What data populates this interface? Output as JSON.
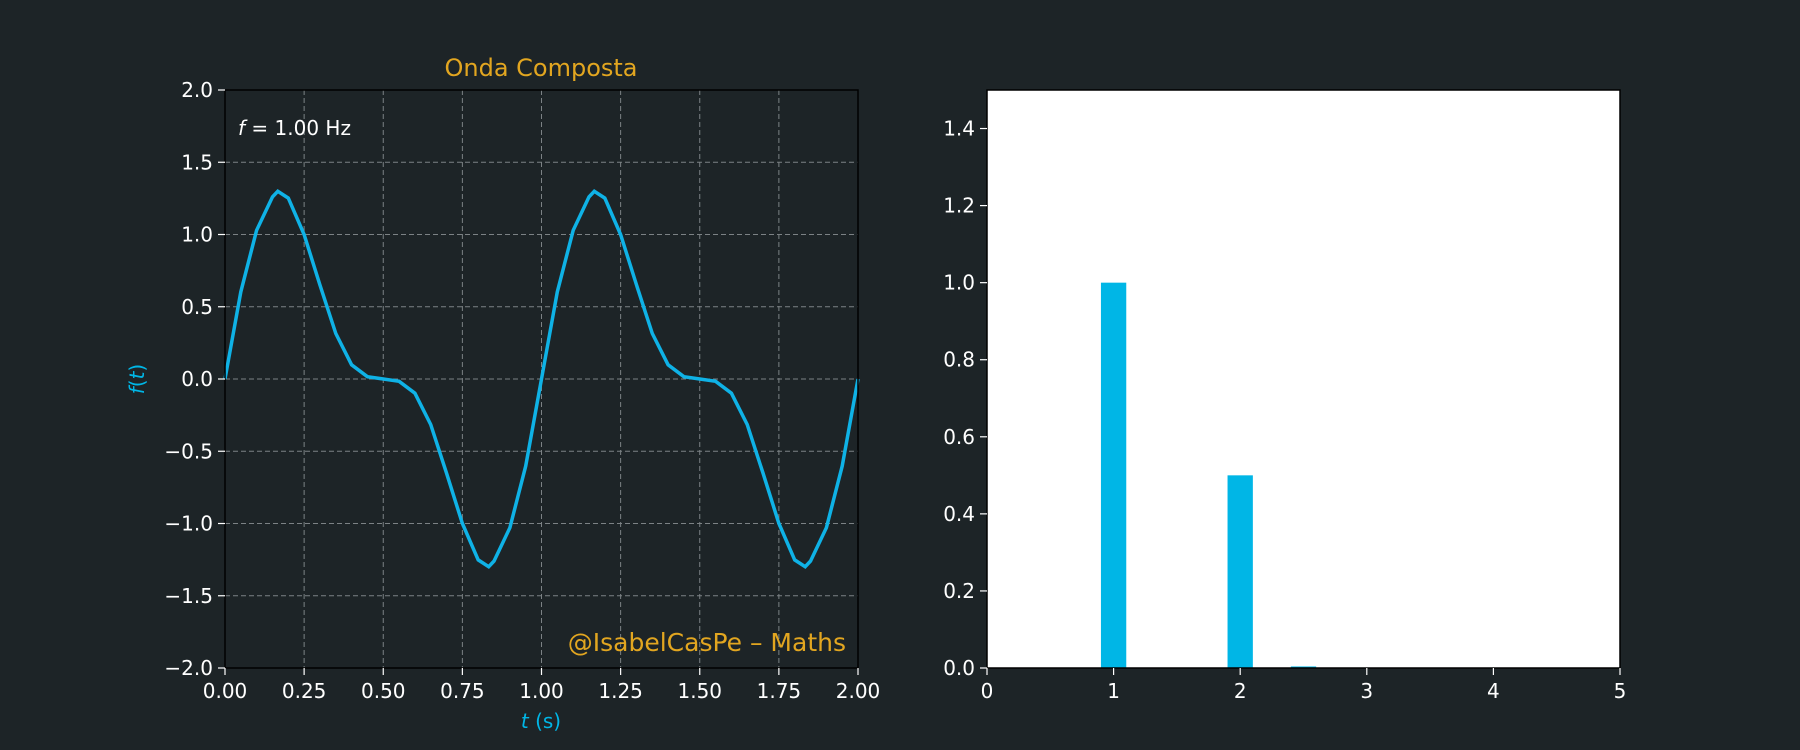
{
  "chart_data": [
    {
      "type": "line",
      "title": "Onda Composta",
      "xlabel_var": "t",
      "xlabel_unit": " (s)",
      "ylabel": "f(t)",
      "ylabel_func": "f",
      "ylabel_arg": "t",
      "xlim": [
        0,
        2
      ],
      "ylim": [
        -2,
        2
      ],
      "xticks": [
        "0.00",
        "0.25",
        "0.50",
        "0.75",
        "1.00",
        "1.25",
        "1.50",
        "1.75",
        "2.00"
      ],
      "yticks": [
        "2.0",
        "1.5",
        "1.0",
        "0.5",
        "0.0",
        "−0.5",
        "−1.0",
        "−1.5",
        "−2.0"
      ],
      "grid": true,
      "annotation_var": "f",
      "annotation_value": " = 1.00 Hz",
      "watermark": "@IsabelCasPe – Maths",
      "series": [
        {
          "x": [
            0,
            0.05,
            0.1,
            0.15,
            0.1667,
            0.2,
            0.25,
            0.3,
            0.35,
            0.4,
            0.45,
            0.5,
            0.55,
            0.6,
            0.65,
            0.7,
            0.75,
            0.8,
            0.8333,
            0.85,
            0.9,
            0.95,
            1.0,
            1.05,
            1.1,
            1.15,
            1.1667,
            1.2,
            1.25,
            1.3,
            1.35,
            1.4,
            1.45,
            1.5,
            1.55,
            1.6,
            1.65,
            1.7,
            1.75,
            1.8,
            1.8333,
            1.85,
            1.9,
            1.95,
            2.0
          ],
          "y": [
            0,
            0.603,
            1.029,
            1.26,
            1.299,
            1.252,
            1.0,
            0.651,
            0.315,
            0.098,
            0.016,
            0,
            -0.016,
            -0.098,
            -0.315,
            -0.651,
            -1.0,
            -1.252,
            -1.299,
            -1.26,
            -1.029,
            -0.603,
            0,
            0.603,
            1.029,
            1.26,
            1.299,
            1.252,
            1.0,
            0.651,
            0.315,
            0.098,
            0.016,
            0,
            -0.016,
            -0.098,
            -0.315,
            -0.651,
            -1.0,
            -1.252,
            -1.299,
            -1.26,
            -1.029,
            -0.603,
            0
          ]
        }
      ],
      "color": "#0fb2e6"
    },
    {
      "type": "bar",
      "xlim": [
        0,
        5
      ],
      "ylim": [
        0,
        1.5
      ],
      "xticks": [
        "0",
        "1",
        "2",
        "3",
        "4",
        "5"
      ],
      "yticks": [
        "0.0",
        "0.2",
        "0.4",
        "0.6",
        "0.8",
        "1.0",
        "1.2",
        "1.4"
      ],
      "x": [
        1,
        2,
        2.5
      ],
      "values": [
        1.0,
        0.5,
        0.004
      ],
      "color": "#00b6e6",
      "background": "#ffffff"
    }
  ]
}
